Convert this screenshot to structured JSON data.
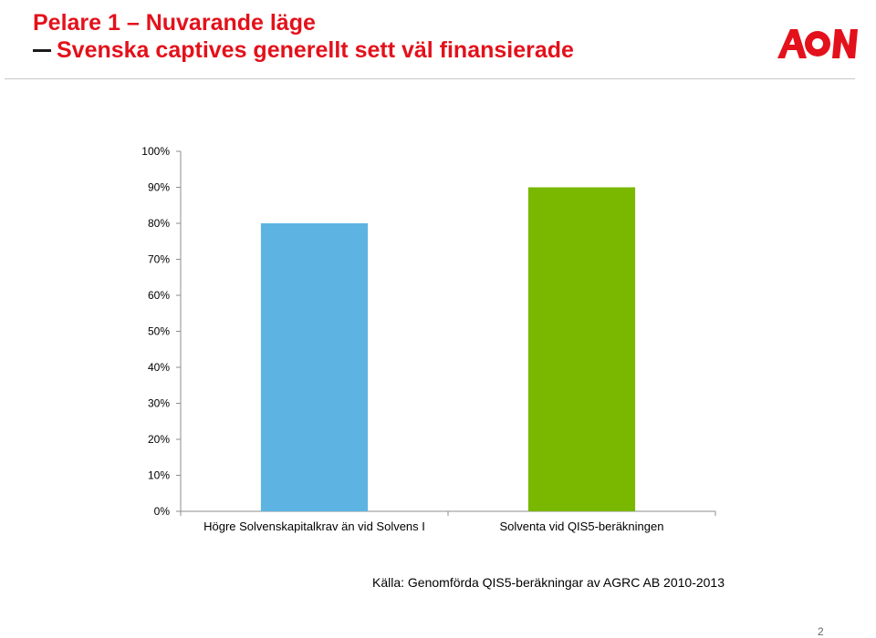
{
  "header": {
    "title_line1": "Pelare 1 – Nuvarande läge",
    "title_line2": "Svenska captives generellt sett väl finansierade",
    "logo_text": "AON",
    "brand_color": "#e3111b"
  },
  "chart_data": {
    "type": "bar",
    "categories": [
      "Högre Solvenskapitalkrav än vid Solvens I",
      "Solventa vid QIS5-beräkningen"
    ],
    "values": [
      80,
      90
    ],
    "colors": [
      "#5db4e2",
      "#7ab800"
    ],
    "ylim": [
      0,
      100
    ],
    "yticks": [
      "0%",
      "10%",
      "20%",
      "30%",
      "40%",
      "50%",
      "60%",
      "70%",
      "80%",
      "90%",
      "100%"
    ],
    "grid": false,
    "legend": "none"
  },
  "footer": {
    "source": "Källa: Genomförda QIS5-beräkningar av AGRC AB 2010-2013",
    "page_number": "2"
  }
}
